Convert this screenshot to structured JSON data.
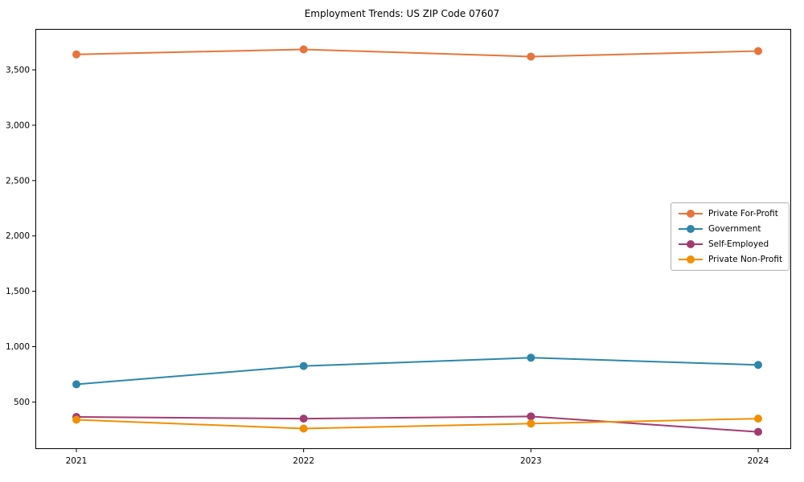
{
  "figure": {
    "background": "#ffffff",
    "spine_color": "#000000",
    "tick_label_color": "#000000"
  },
  "chart_data": {
    "type": "line",
    "title": "Employment Trends: US ZIP Code 07607",
    "xlabel": "",
    "ylabel": "",
    "categories": [
      "2021",
      "2022",
      "2023",
      "2024"
    ],
    "series": [
      {
        "name": "Private For-Profit",
        "color": "#E8743B",
        "values": [
          3640,
          3685,
          3620,
          3670
        ]
      },
      {
        "name": "Government",
        "color": "#2E86AB",
        "values": [
          660,
          825,
          900,
          835
        ]
      },
      {
        "name": "Self-Employed",
        "color": "#A23B72",
        "values": [
          365,
          350,
          370,
          230
        ]
      },
      {
        "name": "Private Non-Profit",
        "color": "#F18F01",
        "values": [
          340,
          260,
          305,
          350
        ]
      }
    ],
    "ylim": [
      75,
      3870
    ],
    "yticks": [
      {
        "value": 500,
        "label": "500"
      },
      {
        "value": 1000,
        "label": "1,000"
      },
      {
        "value": 1500,
        "label": "1,500"
      },
      {
        "value": 2000,
        "label": "2,000"
      },
      {
        "value": 2500,
        "label": "2,500"
      },
      {
        "value": 3000,
        "label": "3,000"
      },
      {
        "value": 3500,
        "label": "3,500"
      }
    ],
    "grid": false,
    "legend_position": "center right",
    "marker": "circle"
  }
}
